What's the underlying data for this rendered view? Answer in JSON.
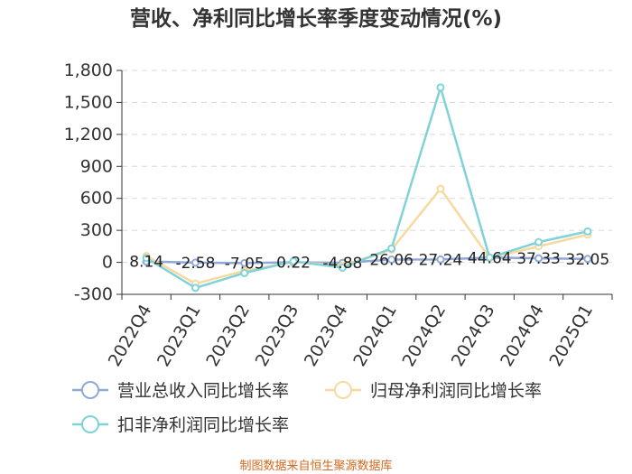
{
  "chart_data": {
    "type": "line",
    "title": "营收、净利同比增长率季度变动情况(%)",
    "categories": [
      "2022Q4",
      "2023Q1",
      "2023Q2",
      "2023Q3",
      "2023Q4",
      "2024Q1",
      "2024Q2",
      "2024Q3",
      "2024Q4",
      "2025Q1"
    ],
    "y_ticks": [
      "-300",
      "0",
      "300",
      "600",
      "900",
      "1,200",
      "1,500",
      "1,800"
    ],
    "ylim": [
      -300,
      1800
    ],
    "grid": true,
    "legend_position": "bottom",
    "series": [
      {
        "name": "营业总收入同比增长率",
        "color": "#8fa8d8",
        "values": [
          8.14,
          -2.58,
          -7.05,
          0.22,
          -4.88,
          26.06,
          27.24,
          44.64,
          37.33,
          32.05
        ],
        "labels": [
          "8.14",
          "-2.58",
          "-7.05",
          "0.22",
          "-4.88",
          "26.06",
          "27.24",
          "44.64",
          "37.33",
          "32.05"
        ]
      },
      {
        "name": "归母净利润同比增长率",
        "color": "#f7d9a0",
        "values": [
          60,
          -200,
          -80,
          5,
          -30,
          120,
          690,
          40,
          150,
          260
        ]
      },
      {
        "name": "扣非净利润同比增长率",
        "color": "#7fd3d8",
        "values": [
          40,
          -240,
          -100,
          10,
          -50,
          130,
          1640,
          45,
          190,
          290
        ]
      }
    ]
  },
  "source_text": "制图数据来自恒生聚源数据库"
}
